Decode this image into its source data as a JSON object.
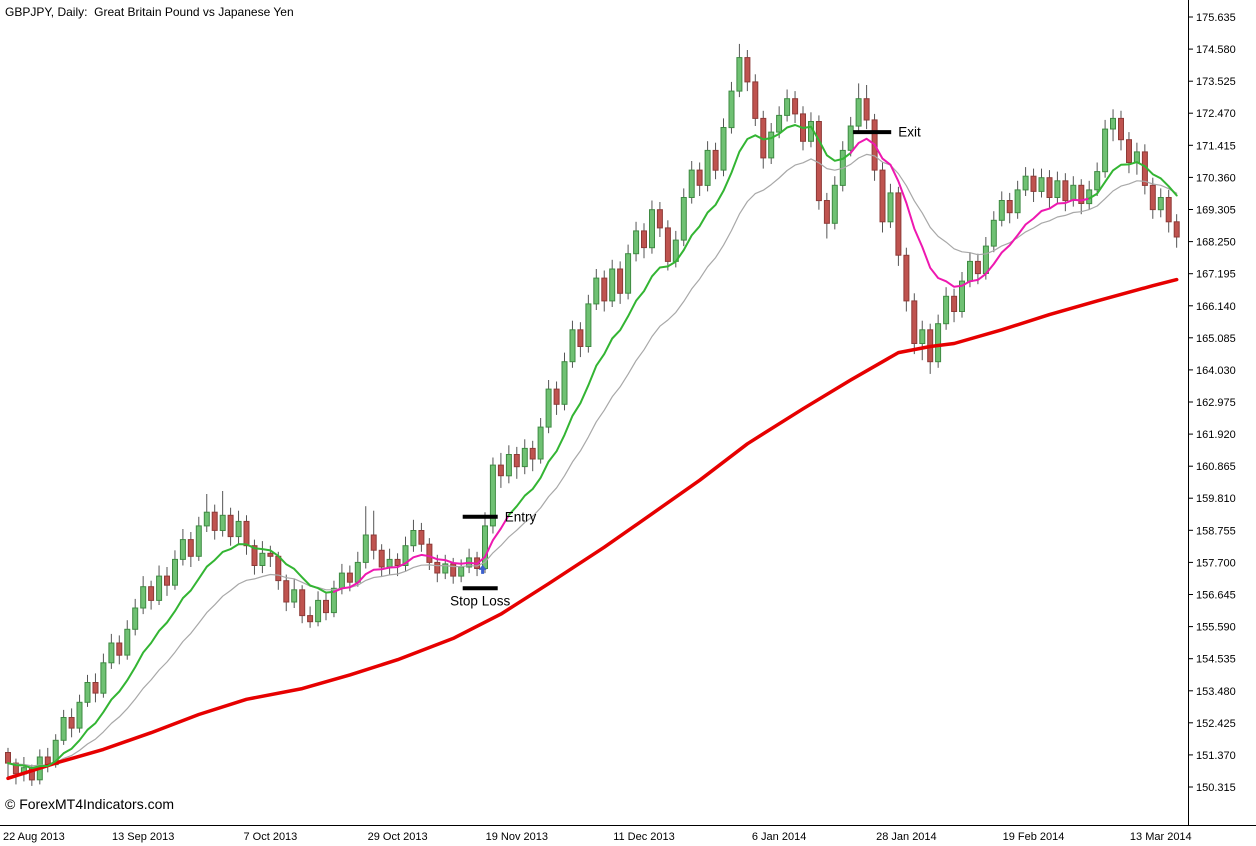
{
  "window": {
    "title": "GBPJPY, Daily:  Great Britain Pound vs Japanese Yen",
    "watermark": "© ForexMT4Indicators.com"
  },
  "colors": {
    "background": "#ffffff",
    "axis_text": "#000000",
    "border": "#000000",
    "candle_up_fill": "#6fc173",
    "candle_up_stroke": "#3e8a42",
    "candle_down_fill": "#bf534f",
    "candle_down_stroke": "#8e3a37",
    "wick": "#555555",
    "trend_up": "#33b533",
    "trend_down": "#ee18b0",
    "medium_ma": "#a8a8a8",
    "slow_band": "#e60000",
    "marker": "#000000",
    "arrow": "#3a5fcd"
  },
  "chart_data": {
    "type": "candlestick",
    "title": "GBPJPY, Daily:  Great Britain Pound vs Japanese Yen",
    "symbol": "GBPJPY",
    "timeframe": "Daily",
    "price_axis": {
      "min": 150.315,
      "max": 175.635,
      "ticks": [
        "175.635",
        "174.580",
        "173.525",
        "172.470",
        "171.415",
        "170.360",
        "169.305",
        "168.250",
        "167.195",
        "166.140",
        "165.085",
        "164.030",
        "162.975",
        "161.920",
        "160.865",
        "159.810",
        "158.755",
        "157.700",
        "156.645",
        "155.590",
        "154.535",
        "153.480",
        "152.425",
        "151.370",
        "150.315"
      ]
    },
    "time_axis": {
      "labels": [
        "22 Aug 2013",
        "13 Sep 2013",
        "7 Oct 2013",
        "29 Oct 2013",
        "19 Nov 2013",
        "11 Dec 2013",
        "6 Jan 2014",
        "28 Jan 2014",
        "19 Feb 2014",
        "13 Mar 2014"
      ],
      "indices": [
        0,
        17,
        33,
        49,
        64,
        80,
        97,
        113,
        129,
        145
      ]
    },
    "candles": [
      [
        151.45,
        151.6,
        150.55,
        151.1
      ],
      [
        151.1,
        151.25,
        150.4,
        150.75
      ],
      [
        150.75,
        151.3,
        150.5,
        150.95
      ],
      [
        150.95,
        151.05,
        150.35,
        150.55
      ],
      [
        150.55,
        151.55,
        150.4,
        151.3
      ],
      [
        151.3,
        151.6,
        150.8,
        151.05
      ],
      [
        151.05,
        152.05,
        150.95,
        151.85
      ],
      [
        151.85,
        152.85,
        151.7,
        152.6
      ],
      [
        152.6,
        152.9,
        151.95,
        152.25
      ],
      [
        152.25,
        153.35,
        152.1,
        153.1
      ],
      [
        153.1,
        154.0,
        152.95,
        153.75
      ],
      [
        153.75,
        154.05,
        153.1,
        153.4
      ],
      [
        153.4,
        154.7,
        153.25,
        154.4
      ],
      [
        154.4,
        155.35,
        154.2,
        155.05
      ],
      [
        155.05,
        155.3,
        154.35,
        154.65
      ],
      [
        154.65,
        155.8,
        154.5,
        155.5
      ],
      [
        155.5,
        156.5,
        155.3,
        156.2
      ],
      [
        156.2,
        157.25,
        156.0,
        156.9
      ],
      [
        156.9,
        157.1,
        156.15,
        156.45
      ],
      [
        156.45,
        157.6,
        156.3,
        157.25
      ],
      [
        157.25,
        157.55,
        156.6,
        156.95
      ],
      [
        156.95,
        158.1,
        156.8,
        157.8
      ],
      [
        157.8,
        158.8,
        157.6,
        158.45
      ],
      [
        158.45,
        158.7,
        157.55,
        157.9
      ],
      [
        157.9,
        159.2,
        157.75,
        158.9
      ],
      [
        158.9,
        159.95,
        158.7,
        159.35
      ],
      [
        159.35,
        159.6,
        158.45,
        158.75
      ],
      [
        158.75,
        160.05,
        158.55,
        159.25
      ],
      [
        159.25,
        159.5,
        158.25,
        158.55
      ],
      [
        158.55,
        159.4,
        158.3,
        159.05
      ],
      [
        159.05,
        159.25,
        157.95,
        158.25
      ],
      [
        158.25,
        158.45,
        157.3,
        157.6
      ],
      [
        157.6,
        158.4,
        157.35,
        158.0
      ],
      [
        158.0,
        158.25,
        157.55,
        157.9
      ],
      [
        157.9,
        158.05,
        156.8,
        157.1
      ],
      [
        157.1,
        157.3,
        156.1,
        156.4
      ],
      [
        156.4,
        157.15,
        156.2,
        156.8
      ],
      [
        156.8,
        156.95,
        155.7,
        155.95
      ],
      [
        155.95,
        156.25,
        155.55,
        155.75
      ],
      [
        155.75,
        156.75,
        155.6,
        156.45
      ],
      [
        156.45,
        156.7,
        155.8,
        156.05
      ],
      [
        156.05,
        157.1,
        155.9,
        156.85
      ],
      [
        156.85,
        157.65,
        156.65,
        157.35
      ],
      [
        157.35,
        157.6,
        156.75,
        157.05
      ],
      [
        157.05,
        158.05,
        156.9,
        157.7
      ],
      [
        157.7,
        159.55,
        157.5,
        158.6
      ],
      [
        158.6,
        159.4,
        157.8,
        158.1
      ],
      [
        158.1,
        158.3,
        157.25,
        157.55
      ],
      [
        157.55,
        158.15,
        157.3,
        157.8
      ],
      [
        157.8,
        158.0,
        157.25,
        157.6
      ],
      [
        157.6,
        158.55,
        157.4,
        158.25
      ],
      [
        158.25,
        159.1,
        158.05,
        158.75
      ],
      [
        158.75,
        159.0,
        158.05,
        158.3
      ],
      [
        158.3,
        158.5,
        157.45,
        157.7
      ],
      [
        157.7,
        157.95,
        157.05,
        157.35
      ],
      [
        157.35,
        157.95,
        157.15,
        157.65
      ],
      [
        157.65,
        157.85,
        157.0,
        157.25
      ],
      [
        157.25,
        157.8,
        157.05,
        157.55
      ],
      [
        157.55,
        158.15,
        157.35,
        157.85
      ],
      [
        157.85,
        158.05,
        157.25,
        157.5
      ],
      [
        157.5,
        159.35,
        157.35,
        158.9
      ],
      [
        158.9,
        161.15,
        158.65,
        160.9
      ],
      [
        160.9,
        161.3,
        160.15,
        160.55
      ],
      [
        160.55,
        161.55,
        160.3,
        161.25
      ],
      [
        161.25,
        161.5,
        160.45,
        160.85
      ],
      [
        160.85,
        161.75,
        160.6,
        161.45
      ],
      [
        161.45,
        161.7,
        160.7,
        161.1
      ],
      [
        161.1,
        162.45,
        160.95,
        162.15
      ],
      [
        162.15,
        163.7,
        161.95,
        163.4
      ],
      [
        163.4,
        163.65,
        162.55,
        162.9
      ],
      [
        162.9,
        164.6,
        162.7,
        164.3
      ],
      [
        164.3,
        165.65,
        164.1,
        165.35
      ],
      [
        165.35,
        165.6,
        164.45,
        164.8
      ],
      [
        164.8,
        166.5,
        164.6,
        166.2
      ],
      [
        166.2,
        167.35,
        166.0,
        167.05
      ],
      [
        167.05,
        167.3,
        165.95,
        166.3
      ],
      [
        166.3,
        167.65,
        166.1,
        167.35
      ],
      [
        167.35,
        167.6,
        166.2,
        166.55
      ],
      [
        166.55,
        168.15,
        166.35,
        167.85
      ],
      [
        167.85,
        168.9,
        167.6,
        168.6
      ],
      [
        168.6,
        168.85,
        167.7,
        168.05
      ],
      [
        168.05,
        169.6,
        167.85,
        169.3
      ],
      [
        169.3,
        169.55,
        168.4,
        168.7
      ],
      [
        168.7,
        168.95,
        167.3,
        167.6
      ],
      [
        167.6,
        168.6,
        167.4,
        168.3
      ],
      [
        168.3,
        170.0,
        168.1,
        169.7
      ],
      [
        169.7,
        170.9,
        169.5,
        170.6
      ],
      [
        170.6,
        170.85,
        169.75,
        170.1
      ],
      [
        170.1,
        171.55,
        169.9,
        171.25
      ],
      [
        171.25,
        171.5,
        170.3,
        170.6
      ],
      [
        170.6,
        172.3,
        170.4,
        172.0
      ],
      [
        172.0,
        173.5,
        171.8,
        173.2
      ],
      [
        173.2,
        174.75,
        173.0,
        174.3
      ],
      [
        174.3,
        174.55,
        173.2,
        173.5
      ],
      [
        173.5,
        173.75,
        172.05,
        172.3
      ],
      [
        172.3,
        172.55,
        170.65,
        171.0
      ],
      [
        171.0,
        172.15,
        170.8,
        171.85
      ],
      [
        171.85,
        172.7,
        171.65,
        172.4
      ],
      [
        172.4,
        173.25,
        172.2,
        172.95
      ],
      [
        172.95,
        173.2,
        172.15,
        172.45
      ],
      [
        172.45,
        172.7,
        171.25,
        171.55
      ],
      [
        171.55,
        172.5,
        171.35,
        172.2
      ],
      [
        172.2,
        172.4,
        169.3,
        169.6
      ],
      [
        169.6,
        169.85,
        168.35,
        168.85
      ],
      [
        168.85,
        170.4,
        168.65,
        170.1
      ],
      [
        170.1,
        171.55,
        169.9,
        171.25
      ],
      [
        171.25,
        172.35,
        171.05,
        172.05
      ],
      [
        172.05,
        173.45,
        171.85,
        172.95
      ],
      [
        172.95,
        173.4,
        171.95,
        172.25
      ],
      [
        172.25,
        172.45,
        170.25,
        170.6
      ],
      [
        170.6,
        170.85,
        168.55,
        168.9
      ],
      [
        168.9,
        170.15,
        168.7,
        169.85
      ],
      [
        169.85,
        170.05,
        167.45,
        167.8
      ],
      [
        167.8,
        168.05,
        165.95,
        166.3
      ],
      [
        166.3,
        166.55,
        164.55,
        164.9
      ],
      [
        164.9,
        165.65,
        164.35,
        165.35
      ],
      [
        165.35,
        165.55,
        163.9,
        164.3
      ],
      [
        164.3,
        165.85,
        164.1,
        165.55
      ],
      [
        165.55,
        166.75,
        165.35,
        166.45
      ],
      [
        166.45,
        166.7,
        165.6,
        165.95
      ],
      [
        165.95,
        167.25,
        165.75,
        166.95
      ],
      [
        166.95,
        167.9,
        166.75,
        167.6
      ],
      [
        167.6,
        167.85,
        166.85,
        167.2
      ],
      [
        167.2,
        168.4,
        167.0,
        168.1
      ],
      [
        168.1,
        169.25,
        167.9,
        168.95
      ],
      [
        168.95,
        169.9,
        168.75,
        169.6
      ],
      [
        169.6,
        169.85,
        168.85,
        169.2
      ],
      [
        169.2,
        170.25,
        169.0,
        169.95
      ],
      [
        169.95,
        170.7,
        169.75,
        170.4
      ],
      [
        170.4,
        170.65,
        169.55,
        169.9
      ],
      [
        169.9,
        170.65,
        169.7,
        170.35
      ],
      [
        170.35,
        170.6,
        169.35,
        169.7
      ],
      [
        169.7,
        170.55,
        169.5,
        170.25
      ],
      [
        170.25,
        170.5,
        169.25,
        169.6
      ],
      [
        169.6,
        170.4,
        169.4,
        170.1
      ],
      [
        170.1,
        170.3,
        169.15,
        169.5
      ],
      [
        169.5,
        170.25,
        169.3,
        169.95
      ],
      [
        169.95,
        170.85,
        169.75,
        170.55
      ],
      [
        170.55,
        172.25,
        170.35,
        171.95
      ],
      [
        171.95,
        172.6,
        171.55,
        172.3
      ],
      [
        172.3,
        172.55,
        171.25,
        171.6
      ],
      [
        171.6,
        171.85,
        170.5,
        170.85
      ],
      [
        170.85,
        171.5,
        170.45,
        171.2
      ],
      [
        171.2,
        171.45,
        169.8,
        170.1
      ],
      [
        170.1,
        170.35,
        169.0,
        169.3
      ],
      [
        169.3,
        170.0,
        169.05,
        169.7
      ],
      [
        169.7,
        169.95,
        168.55,
        168.9
      ],
      [
        168.9,
        169.15,
        168.05,
        168.4
      ]
    ],
    "overlays": {
      "fast_ma_period": 10,
      "medium_ma_period": 20,
      "signal_ranges": [
        [
          41,
          62
        ],
        [
          106,
          135
        ]
      ],
      "slow_band": [
        [
          0,
          150.6
        ],
        [
          6,
          151.1
        ],
        [
          12,
          151.55
        ],
        [
          18,
          152.1
        ],
        [
          24,
          152.7
        ],
        [
          30,
          153.2
        ],
        [
          37,
          153.55
        ],
        [
          43,
          154.0
        ],
        [
          49,
          154.5
        ],
        [
          56,
          155.2
        ],
        [
          62,
          156.0
        ],
        [
          68,
          157.0
        ],
        [
          75,
          158.2
        ],
        [
          81,
          159.3
        ],
        [
          87,
          160.4
        ],
        [
          93,
          161.6
        ],
        [
          100,
          162.75
        ],
        [
          106,
          163.7
        ],
        [
          112,
          164.6
        ],
        [
          116,
          164.8
        ],
        [
          119,
          164.9
        ],
        [
          125,
          165.35
        ],
        [
          131,
          165.85
        ],
        [
          137,
          166.3
        ],
        [
          144,
          166.8
        ],
        [
          147,
          167.0
        ]
      ]
    },
    "markers": [
      {
        "id": "entry",
        "label": "Entry",
        "price": 159.2,
        "from_index": 57.2,
        "to_index": 61.6,
        "label_position": "right"
      },
      {
        "id": "stop-loss",
        "label": "Stop Loss",
        "price": 156.85,
        "from_index": 57.2,
        "to_index": 61.6,
        "label_position": "below",
        "arrow": {
          "index": 59.7,
          "price": 157.62,
          "direction": "up"
        }
      },
      {
        "id": "exit",
        "label": "Exit",
        "price": 171.85,
        "from_index": 106.3,
        "to_index": 111.1,
        "label_position": "right"
      }
    ]
  }
}
